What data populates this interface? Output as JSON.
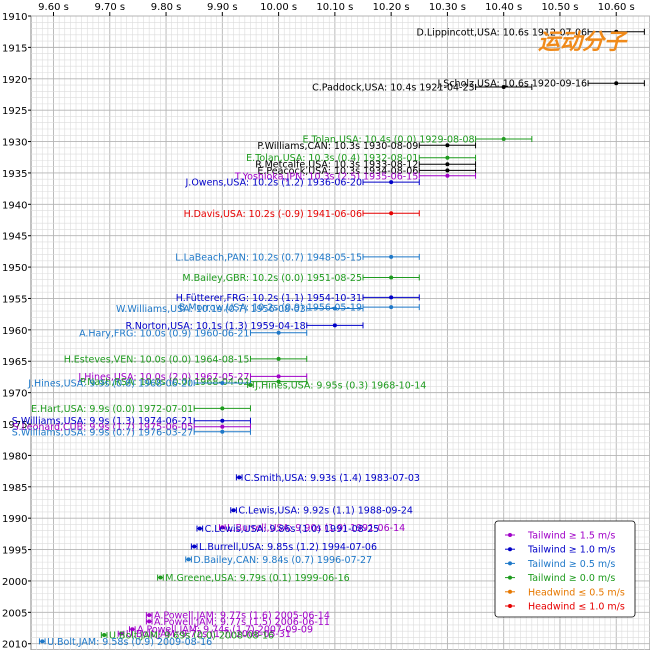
{
  "watermark": "运动分子",
  "chart_data": {
    "type": "scatter",
    "title": "",
    "xlabel": "",
    "ylabel": "",
    "x_axis_position": "top",
    "xlim": [
      9.56,
      10.66
    ],
    "ylim": [
      1910,
      2011
    ],
    "x_ticks": [
      9.6,
      9.7,
      9.8,
      9.9,
      10.0,
      10.1,
      10.2,
      10.3,
      10.4,
      10.5,
      10.6
    ],
    "x_tick_labels": [
      "9.60 s",
      "9.70 s",
      "9.80 s",
      "9.90 s",
      "10.00 s",
      "10.10 s",
      "10.20 s",
      "10.30 s",
      "10.40 s",
      "10.50 s",
      "10.60 s"
    ],
    "y_ticks": [
      1910,
      1915,
      1920,
      1925,
      1930,
      1935,
      1940,
      1945,
      1950,
      1955,
      1960,
      1965,
      1970,
      1975,
      1980,
      1985,
      1990,
      1995,
      2000,
      2005,
      2010
    ],
    "y_tick_labels": [
      "1910",
      "1915",
      "1920",
      "1925",
      "1930",
      "1935",
      "1940",
      "1945",
      "1950",
      "1955",
      "1960",
      "1965",
      "1970",
      "1975",
      "1980",
      "1985",
      "1990",
      "1995",
      "2000",
      "2005",
      "2010"
    ],
    "grid": true,
    "legend_position": "bottom-right",
    "legend": [
      {
        "label": "Tailwind ≥ 1.5 m/s",
        "color": "#a000c8"
      },
      {
        "label": "Tailwind ≥ 1.0 m/s",
        "color": "#0000c8"
      },
      {
        "label": "Tailwind ≥ 0.5 m/s",
        "color": "#1e78c8"
      },
      {
        "label": "Tailwind ≥ 0.0 m/s",
        "color": "#1e9b1e"
      },
      {
        "label": "Headwind ≤ 0.5 m/s",
        "color": "#e67800"
      },
      {
        "label": "Headwind ≤ 1.0 m/s",
        "color": "#e60000"
      }
    ],
    "records": [
      {
        "label": "D.Lippincott,USA: 10.6s 1912-07-06",
        "time": 10.6,
        "year": 1912.51,
        "err": 0.05,
        "color": "#000000",
        "side": "left"
      },
      {
        "label": "J.Scholz,USA: 10.6s 1920-09-16",
        "time": 10.6,
        "year": 1920.71,
        "err": 0.05,
        "color": "#000000",
        "side": "left"
      },
      {
        "label": "C.Paddock,USA: 10.4s 1921-04-23",
        "time": 10.4,
        "year": 1921.31,
        "err": 0.05,
        "color": "#000000",
        "side": "left"
      },
      {
        "label": "E.Tolan,USA: 10.4s (0.0) 1929-08-08",
        "time": 10.4,
        "year": 1929.6,
        "err": 0.05,
        "color": "#1e9b1e",
        "side": "left"
      },
      {
        "label": "P.Williams,CAN: 10.3s 1930-08-09",
        "time": 10.3,
        "year": 1930.6,
        "err": 0.05,
        "color": "#000000",
        "side": "left"
      },
      {
        "label": "E.Tolan,USA: 10.3s (0.4) 1932-08-01",
        "time": 10.3,
        "year": 1932.58,
        "err": 0.05,
        "color": "#1e9b1e",
        "side": "left"
      },
      {
        "label": "R.Metcalfe,USA: 10.3s 1933-08-12",
        "time": 10.3,
        "year": 1933.61,
        "err": 0.05,
        "color": "#000000",
        "side": "left"
      },
      {
        "label": "E.Peacock,USA: 10.3s 1934-08-06",
        "time": 10.3,
        "year": 1934.6,
        "err": 0.05,
        "color": "#000000",
        "side": "left"
      },
      {
        "label": "T.Yoshioka,JPN: 10.3s (2.5) 1935-06-15",
        "time": 10.3,
        "year": 1935.45,
        "err": 0.05,
        "color": "#a000c8",
        "side": "left"
      },
      {
        "label": "J.Owens,USA: 10.2s (1.2) 1936-06-20",
        "time": 10.2,
        "year": 1936.47,
        "err": 0.05,
        "color": "#0000c8",
        "side": "left"
      },
      {
        "label": "H.Davis,USA: 10.2s (-0.9) 1941-06-06",
        "time": 10.2,
        "year": 1941.43,
        "err": 0.05,
        "color": "#e60000",
        "side": "left"
      },
      {
        "label": "L.LaBeach,PAN: 10.2s (0.7) 1948-05-15",
        "time": 10.2,
        "year": 1948.37,
        "err": 0.05,
        "color": "#1e78c8",
        "side": "left"
      },
      {
        "label": "M.Bailey,GBR: 10.2s (0.0) 1951-08-25",
        "time": 10.2,
        "year": 1951.65,
        "err": 0.05,
        "color": "#1e9b1e",
        "side": "left"
      },
      {
        "label": "H.Fütterer,FRG: 10.2s (1.1) 1954-10-31",
        "time": 10.2,
        "year": 1954.83,
        "err": 0.05,
        "color": "#0000c8",
        "side": "left"
      },
      {
        "label": "B.Morrow,USA: 10.2s (0.9) 1956-05-19",
        "time": 10.2,
        "year": 1956.38,
        "err": 0.05,
        "color": "#1e78c8",
        "side": "left"
      },
      {
        "label": "W.Williams,USA: 10.1s (0.7) 1956-08-03",
        "time": 10.1,
        "year": 1956.59,
        "err": 0.05,
        "color": "#1e78c8",
        "side": "left"
      },
      {
        "label": "R.Norton,USA: 10.1s (1.3) 1959-04-18",
        "time": 10.1,
        "year": 1959.29,
        "err": 0.05,
        "color": "#0000c8",
        "side": "left"
      },
      {
        "label": "A.Hary,FRG: 10.0s (0.9) 1960-06-21",
        "time": 10.0,
        "year": 1960.47,
        "err": 0.05,
        "color": "#1e78c8",
        "side": "left"
      },
      {
        "label": "H.Esteves,VEN: 10.0s (0.0) 1964-08-15",
        "time": 10.0,
        "year": 1964.62,
        "err": 0.05,
        "color": "#1e9b1e",
        "side": "left"
      },
      {
        "label": "J.Hines,USA: 10.0s (2.0) 1967-05-27",
        "time": 10.0,
        "year": 1967.4,
        "err": 0.05,
        "color": "#a000c8",
        "side": "left"
      },
      {
        "label": "P.Nash,RSA: 10.0s (0.0) 1968-04-02",
        "time": 10.0,
        "year": 1968.25,
        "err": 0.05,
        "color": "#1e9b1e",
        "side": "left"
      },
      {
        "label": "J.Hines,USA: 9.9s (0.8) 1968-06-20",
        "time": 9.9,
        "year": 1968.47,
        "err": 0.05,
        "color": "#1e78c8",
        "side": "left"
      },
      {
        "label": "J.Hines,USA: 9.95s (0.3) 1968-10-14",
        "time": 9.95,
        "year": 1968.78,
        "err": 0.005,
        "color": "#1e9b1e",
        "side": "right"
      },
      {
        "label": "E.Hart,USA: 9.9s (0.0) 1972-07-01",
        "time": 9.9,
        "year": 1972.5,
        "err": 0.05,
        "color": "#1e9b1e",
        "side": "left"
      },
      {
        "label": "S.Williams,USA: 9.9s (1.3) 1974-06-21",
        "time": 9.9,
        "year": 1974.47,
        "err": 0.05,
        "color": "#0000c8",
        "side": "left"
      },
      {
        "label": "S.Leonard,CUB: 9.9s (1.7) 1975-06-05",
        "time": 9.9,
        "year": 1975.43,
        "err": 0.05,
        "color": "#a000c8",
        "side": "left"
      },
      {
        "label": "S.Williams,USA: 9.9s (0.7) 1976-03-27",
        "time": 9.9,
        "year": 1976.24,
        "err": 0.05,
        "color": "#1e78c8",
        "side": "left"
      },
      {
        "label": "C.Smith,USA: 9.93s (1.4) 1983-07-03",
        "time": 9.93,
        "year": 1983.5,
        "err": 0.005,
        "color": "#0000c8",
        "side": "right"
      },
      {
        "label": "C.Lewis,USA: 9.92s (1.1) 1988-09-24",
        "time": 9.92,
        "year": 1988.73,
        "err": 0.005,
        "color": "#0000c8",
        "side": "right"
      },
      {
        "label": "L.Burrell,USA: 9.90s (1.9) 1991-06-14",
        "time": 9.9,
        "year": 1991.45,
        "err": 0.005,
        "color": "#a000c8",
        "side": "right"
      },
      {
        "label": "C.Lewis,USA: 9.86s (1.0) 1991-08-25",
        "time": 9.86,
        "year": 1991.65,
        "err": 0.005,
        "color": "#0000c8",
        "side": "right"
      },
      {
        "label": "L.Burrell,USA: 9.85s (1.2) 1994-07-06",
        "time": 9.85,
        "year": 1994.51,
        "err": 0.005,
        "color": "#0000c8",
        "side": "right"
      },
      {
        "label": "D.Bailey,CAN: 9.84s (0.7) 1996-07-27",
        "time": 9.84,
        "year": 1996.57,
        "err": 0.005,
        "color": "#1e78c8",
        "side": "right"
      },
      {
        "label": "M.Greene,USA: 9.79s (0.1) 1999-06-16",
        "time": 9.79,
        "year": 1999.46,
        "err": 0.005,
        "color": "#1e9b1e",
        "side": "right"
      },
      {
        "label": "A.Powell,JAM: 9.77s (1.6) 2005-06-14",
        "time": 9.77,
        "year": 2005.45,
        "err": 0.005,
        "color": "#a000c8",
        "side": "right"
      },
      {
        "label": "A.Powell,JAM: 9.77s (1.5) 2006-06-11",
        "time": 9.77,
        "year": 2006.44,
        "err": 0.005,
        "color": "#a000c8",
        "side": "right"
      },
      {
        "label": "A.Powell,JAM: 9.74s (1.7) 2007-09-09",
        "time": 9.74,
        "year": 2007.69,
        "err": 0.005,
        "color": "#a000c8",
        "side": "right"
      },
      {
        "label": "U.Bolt,JAM: 9.72s (1.7) 2008-05-31",
        "time": 9.72,
        "year": 2008.41,
        "err": 0.005,
        "color": "#a000c8",
        "side": "right"
      },
      {
        "label": "U.Bolt,JAM: 9.69s (0.0) 2008-08-16",
        "time": 9.69,
        "year": 2008.62,
        "err": 0.005,
        "color": "#1e9b1e",
        "side": "right"
      },
      {
        "label": "U.Bolt,JAM: 9.58s (0.9) 2009-08-16",
        "time": 9.58,
        "year": 2009.62,
        "err": 0.005,
        "color": "#1e78c8",
        "side": "right"
      }
    ]
  }
}
